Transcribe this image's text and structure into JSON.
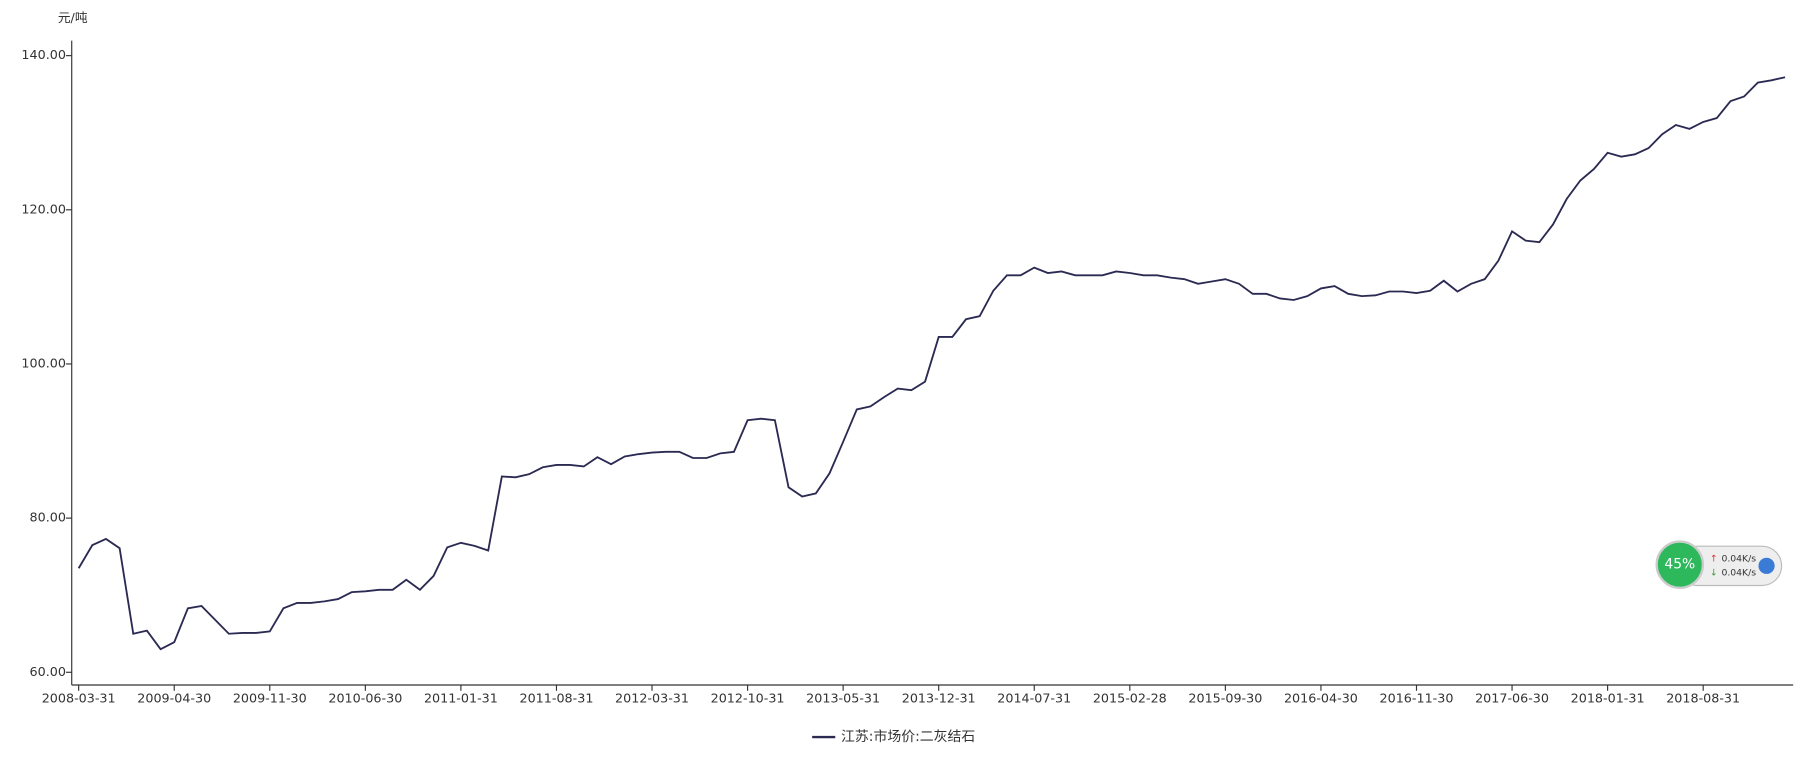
{
  "chart_data": {
    "type": "line",
    "y_label": "元/吨",
    "categories": [
      "2008-03-31",
      null,
      null,
      null,
      null,
      null,
      null,
      "2009-04-30",
      null,
      null,
      null,
      null,
      null,
      null,
      "2009-11-30",
      null,
      null,
      null,
      null,
      null,
      null,
      "2010-06-30",
      null,
      null,
      null,
      null,
      null,
      null,
      "2011-01-31",
      null,
      null,
      null,
      null,
      null,
      null,
      "2011-08-31",
      null,
      null,
      null,
      null,
      null,
      null,
      "2012-03-31",
      null,
      null,
      null,
      null,
      null,
      null,
      "2012-10-31",
      null,
      null,
      null,
      null,
      null,
      null,
      "2013-05-31",
      null,
      null,
      null,
      null,
      null,
      null,
      "2013-12-31",
      null,
      null,
      null,
      null,
      null,
      null,
      "2014-07-31",
      null,
      null,
      null,
      null,
      null,
      null,
      "2015-02-28",
      null,
      null,
      null,
      null,
      null,
      null,
      "2015-09-30",
      null,
      null,
      null,
      null,
      null,
      null,
      "2016-04-30",
      null,
      null,
      null,
      null,
      null,
      null,
      "2016-11-30",
      null,
      null,
      null,
      null,
      null,
      null,
      "2017-06-30",
      null,
      null,
      null,
      null,
      null,
      null,
      "2018-01-31",
      null,
      null,
      null,
      null,
      null,
      null,
      "2018-08-31",
      null,
      null,
      null,
      null,
      null,
      null
    ],
    "series": [
      {
        "name": "江苏:市场价:二灰结石",
        "color": "#2b2a52",
        "values": [
          73.5,
          76.5,
          77.3,
          76.1,
          65.0,
          65.4,
          63.0,
          63.9,
          68.3,
          68.6,
          66.8,
          65.0,
          65.1,
          65.1,
          65.3,
          68.3,
          69.0,
          69.0,
          69.2,
          69.5,
          70.4,
          70.5,
          70.7,
          70.7,
          72.0,
          70.7,
          72.5,
          76.2,
          76.8,
          76.4,
          75.8,
          85.4,
          85.3,
          85.7,
          86.6,
          86.9,
          86.9,
          86.7,
          87.9,
          87.0,
          88.0,
          88.3,
          88.5,
          88.6,
          88.6,
          87.8,
          87.8,
          88.4,
          88.6,
          92.7,
          92.9,
          92.7,
          84.0,
          82.8,
          83.2,
          85.8,
          89.9,
          94.1,
          94.5,
          95.7,
          96.8,
          96.6,
          97.7,
          103.5,
          103.5,
          105.8,
          106.2,
          109.5,
          111.5,
          111.5,
          112.5,
          111.8,
          112.0,
          111.5,
          111.5,
          111.5,
          112.0,
          111.8,
          111.5,
          111.5,
          111.2,
          111.0,
          110.4,
          110.7,
          111.0,
          110.4,
          109.1,
          109.1,
          108.5,
          108.3,
          108.8,
          109.8,
          110.1,
          109.1,
          108.8,
          108.9,
          109.4,
          109.4,
          109.2,
          109.5,
          110.8,
          109.4,
          110.4,
          111.0,
          113.4,
          117.2,
          116.0,
          115.8,
          118.1,
          121.4,
          123.8,
          125.3,
          127.4,
          126.9,
          127.2,
          128.0,
          129.8,
          131.0,
          130.5,
          131.4,
          131.9,
          134.1,
          134.7,
          136.5,
          136.8,
          137.2
        ]
      }
    ],
    "ylim": [
      58.35,
      141.95
    ],
    "yticks": [
      {
        "value": 60,
        "label": "60.00"
      },
      {
        "value": 80,
        "label": "80.00"
      },
      {
        "value": 100,
        "label": "100.00"
      },
      {
        "value": 120,
        "label": "120.00"
      },
      {
        "value": 140,
        "label": "140.00"
      }
    ],
    "grid": false,
    "legend": "bottom"
  },
  "widget": {
    "percent": "45%",
    "upload": "0.04K/s",
    "download": "0.04K/s"
  }
}
